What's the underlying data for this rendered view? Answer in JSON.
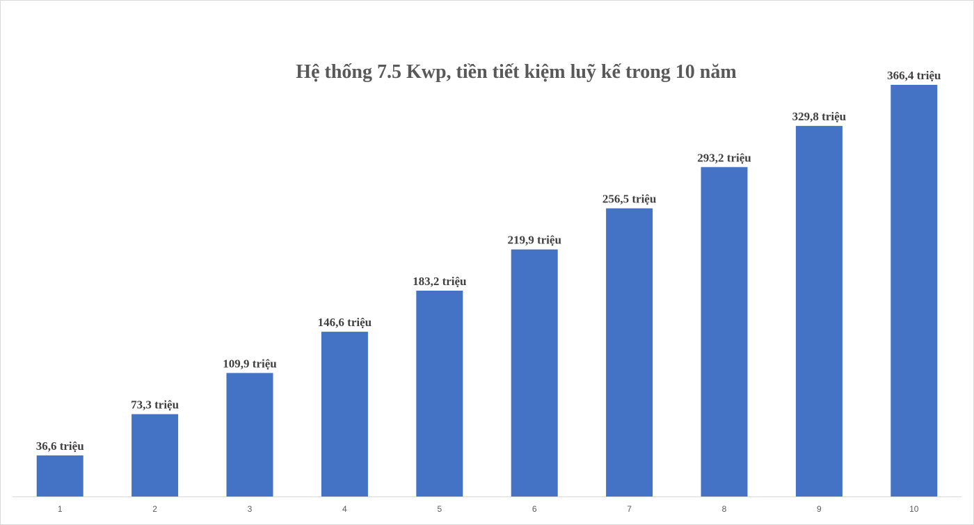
{
  "chart_data": {
    "type": "bar",
    "title": "Hệ thống 7.5 Kwp, tiền tiết kiệm luỹ kế trong 10 năm",
    "categories": [
      "1",
      "2",
      "3",
      "4",
      "5",
      "6",
      "7",
      "8",
      "9",
      "10"
    ],
    "values": [
      36.6,
      73.3,
      109.9,
      146.6,
      183.2,
      219.9,
      256.5,
      293.2,
      329.8,
      366.4
    ],
    "data_labels": [
      "36,6 triệu",
      "73,3 triệu",
      "109,9 triệu",
      "146,6 triệu",
      "183,2 triệu",
      "219,9 triệu",
      "256,5 triệu",
      "293,2 triệu",
      "329,8 triệu",
      "366,4 triệu"
    ],
    "xlabel": "",
    "ylabel": "",
    "ylim": [
      0,
      366.4
    ],
    "grid": false,
    "legend": "none",
    "bar_color": "#4472C4",
    "axis_color": "#d9d9d9"
  }
}
